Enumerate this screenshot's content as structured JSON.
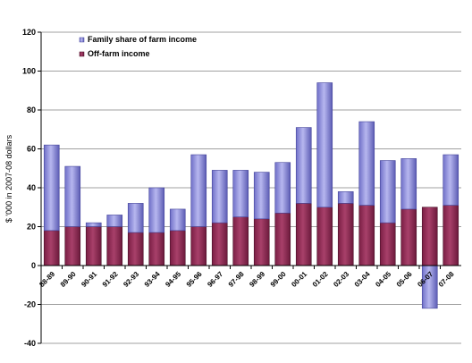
{
  "chart_data": {
    "type": "bar",
    "stacked": true,
    "categories": [
      "88-89",
      "89-90",
      "90-91",
      "91-92",
      "92-93",
      "93-94",
      "94-95",
      "95-96",
      "96-97",
      "97-98",
      "98-99",
      "99-00",
      "00-01",
      "01-02",
      "02-03",
      "03-04",
      "04-05",
      "05-06",
      "06-07",
      "07-08"
    ],
    "series": [
      {
        "name": "Off-farm income",
        "color": "#8e2a52",
        "values": [
          18,
          20,
          20,
          20,
          17,
          17,
          18,
          20,
          22,
          25,
          24,
          27,
          32,
          30,
          32,
          31,
          22,
          29,
          30,
          31
        ]
      },
      {
        "name": "Family share of farm income",
        "color": "#8f8fdc",
        "values": [
          44,
          31,
          2,
          6,
          15,
          23,
          11,
          37,
          27,
          24,
          24,
          26,
          39,
          64,
          6,
          43,
          32,
          26,
          -22,
          26
        ]
      }
    ],
    "ylabel": "$ '000 in 2007-08 dollars",
    "xlabel": "",
    "title": "",
    "ylim": [
      -40,
      120
    ],
    "yticks": [
      -40,
      -20,
      0,
      20,
      40,
      60,
      80,
      100,
      120
    ],
    "grid": true,
    "legend": "top-left"
  }
}
